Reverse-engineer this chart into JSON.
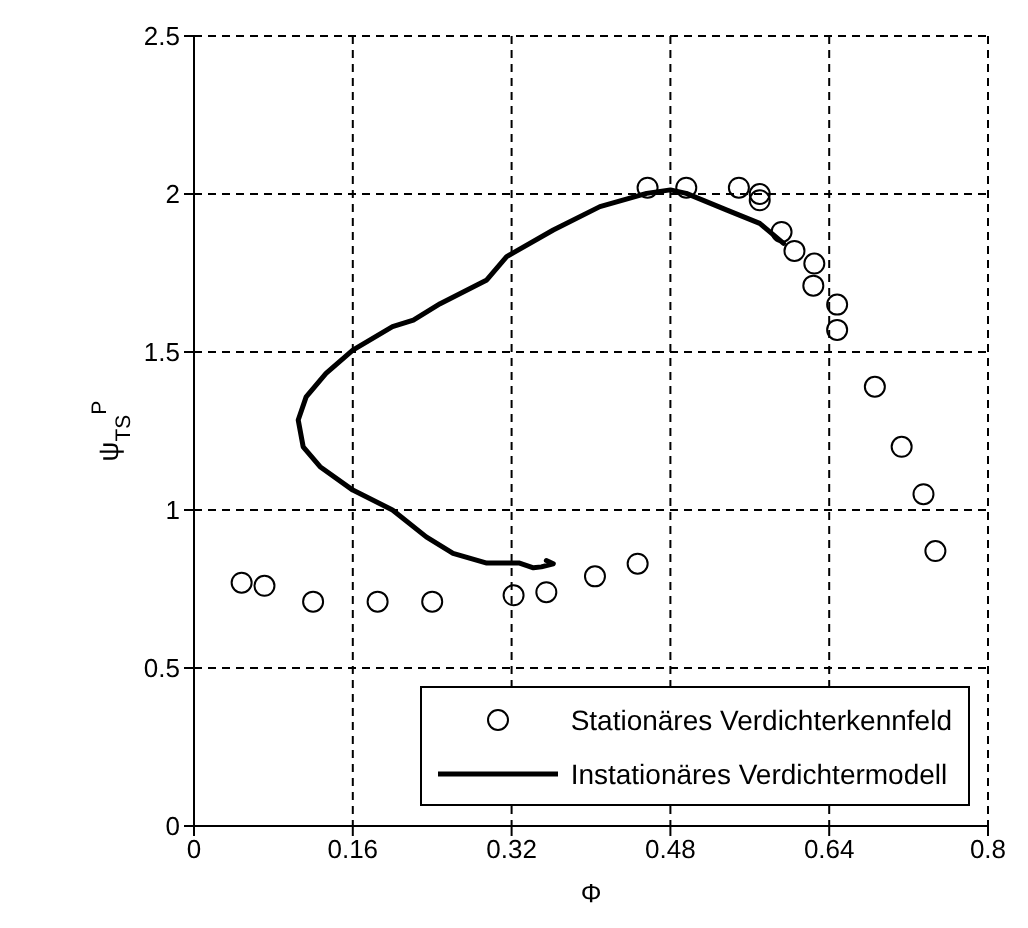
{
  "chart_data": {
    "type": "scatter",
    "xlabel": "Φ",
    "ylabel": "ψ$_{TS}$$^{P}$",
    "xlim": [
      0,
      0.8
    ],
    "xticks": [
      0,
      0.16,
      0.32,
      0.48,
      0.64,
      0.8
    ],
    "ylim": [
      0,
      2.5
    ],
    "yticks": [
      0,
      0.5,
      1,
      1.5,
      2,
      2.5
    ],
    "grid": true,
    "legend": "bottom right",
    "series": [
      {
        "name": "Stationäres Verdichterkennfeld",
        "marker": "circle",
        "color": "#000000",
        "x": [
          0.048,
          0.071,
          0.12,
          0.185,
          0.24,
          0.322,
          0.355,
          0.404,
          0.447,
          0.747,
          0.735,
          0.713,
          0.686,
          0.648,
          0.648,
          0.624,
          0.457,
          0.496,
          0.549,
          0.57,
          0.57,
          0.592,
          0.605,
          0.625
        ],
        "values": [
          0.77,
          0.76,
          0.71,
          0.71,
          0.71,
          0.73,
          0.74,
          0.79,
          0.83,
          0.87,
          1.05,
          1.2,
          1.39,
          1.57,
          1.65,
          1.71,
          2.02,
          2.02,
          2.02,
          2,
          1.98,
          1.88,
          1.82,
          1.78
        ]
      },
      {
        "name": "Instationäres Verdichtermodell",
        "type": "line",
        "marker": "none",
        "line_style": "solid",
        "color": "#000000",
        "x": [
          0.355,
          0.362,
          0.35,
          0.342,
          0.328,
          0.295,
          0.261,
          0.234,
          0.2,
          0.16,
          0.127,
          0.11,
          0.105,
          0.113,
          0.133,
          0.16,
          0.2,
          0.221,
          0.248,
          0.295,
          0.315,
          0.362,
          0.409,
          0.456,
          0.48,
          0.496,
          0.537,
          0.57,
          0.594
        ],
        "values": [
          0.84,
          0.83,
          0.82,
          0.817,
          0.832,
          0.832,
          0.863,
          0.915,
          1.0,
          1.063,
          1.137,
          1.2,
          1.285,
          1.358,
          1.432,
          1.506,
          1.58,
          1.601,
          1.653,
          1.728,
          1.802,
          1.886,
          1.96,
          2.002,
          2.013,
          2.002,
          1.949,
          1.907,
          1.844
        ]
      }
    ]
  }
}
